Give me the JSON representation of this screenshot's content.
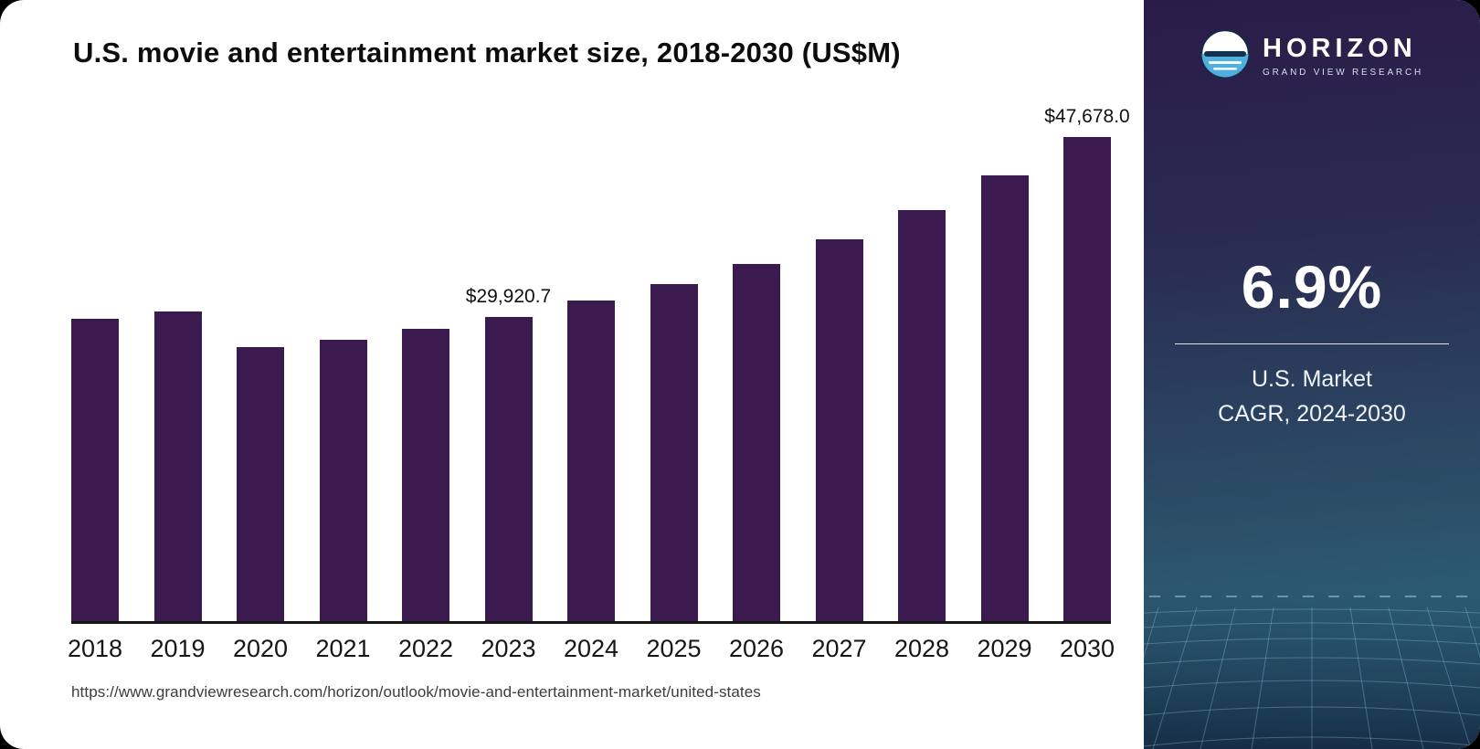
{
  "header": {
    "title": "U.S. movie and entertainment market size, 2018-2030 (US$M)"
  },
  "chart_data": {
    "type": "bar",
    "title": "U.S. movie and entertainment market size, 2018-2030 (US$M)",
    "categories": [
      "2018",
      "2019",
      "2020",
      "2021",
      "2022",
      "2023",
      "2024",
      "2025",
      "2026",
      "2027",
      "2028",
      "2029",
      "2030"
    ],
    "values": [
      29800,
      30500,
      27000,
      27700,
      28800,
      29920.7,
      31600,
      33200,
      35200,
      37600,
      40500,
      43900,
      47678.0
    ],
    "data_labels": [
      {
        "index": 5,
        "text": "$29,920.7"
      },
      {
        "index": 12,
        "text": "$47,678.0"
      }
    ],
    "xlabel": "",
    "ylabel": "US$M",
    "ylim": [
      0,
      50000
    ],
    "grid": false,
    "legend": "none",
    "bar_color": "#3a1a4f"
  },
  "sidebar": {
    "brand": "HORIZON",
    "brand_sub": "GRAND VIEW RESEARCH",
    "cagr_value": "6.9%",
    "cagr_label_line1": "U.S. Market",
    "cagr_label_line2": "CAGR, 2024-2030"
  },
  "footer": {
    "url": "https://www.grandviewresearch.com/horizon/outlook/movie-and-entertainment-market/united-states"
  }
}
